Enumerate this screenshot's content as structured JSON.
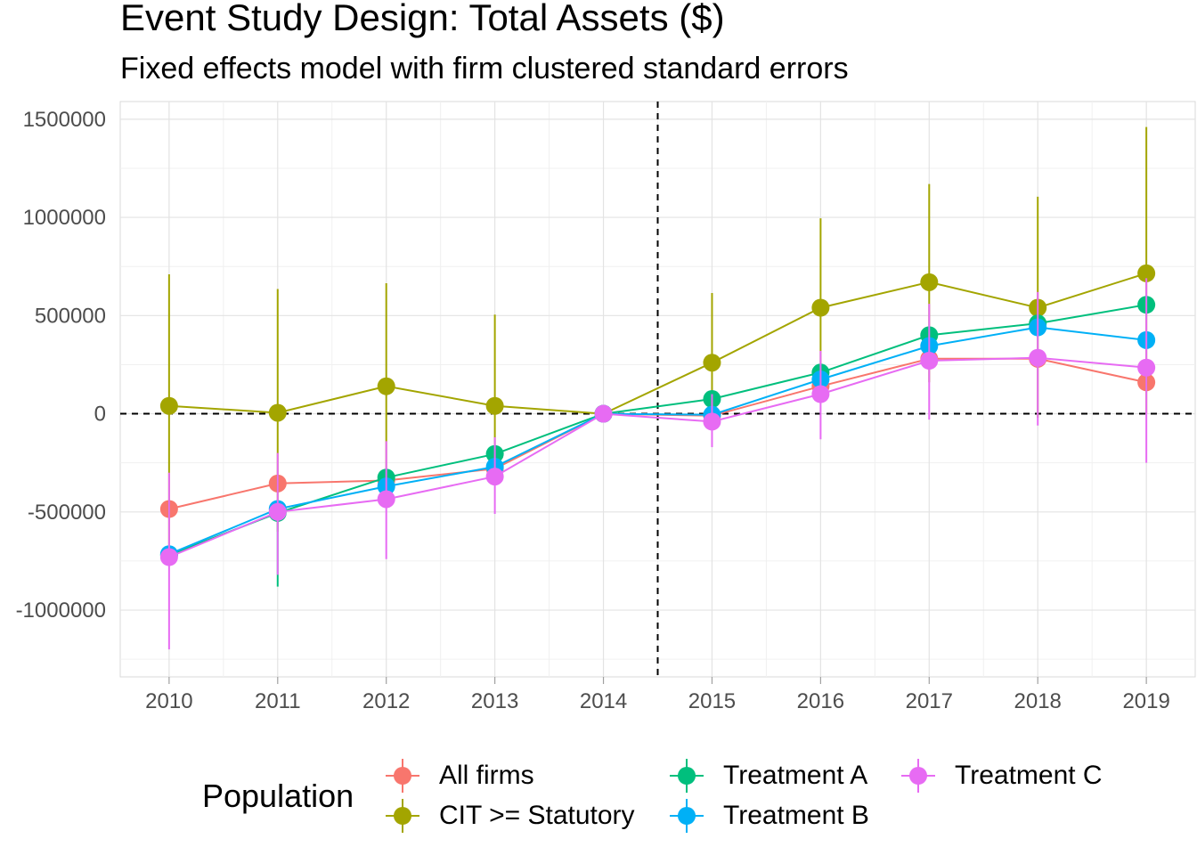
{
  "chart_data": {
    "type": "line",
    "title": "Event Study Design: Total Assets ($)",
    "subtitle": "Fixed effects model with firm clustered standard errors",
    "x": [
      "2010",
      "2011",
      "2012",
      "2013",
      "2014",
      "2015",
      "2016",
      "2017",
      "2018",
      "2019"
    ],
    "xlim": [
      2009.55,
      2019.45
    ],
    "ylim": [
      -1340000,
      1590000
    ],
    "yticks": [
      -1000000,
      -500000,
      0,
      500000,
      1000000,
      1500000
    ],
    "ytick_labels": [
      "-1000000",
      "-500000",
      "0",
      "500000",
      "1000000",
      "1500000"
    ],
    "grid": true,
    "reference_lines": {
      "vertical_x": 2014.5,
      "horizontal_y": 0,
      "style": "dashed"
    },
    "legend": {
      "title": "Population",
      "position": "bottom"
    },
    "series": [
      {
        "name": "All firms",
        "color": "#F8766D",
        "values": [
          -485000,
          -355000,
          -340000,
          -280000,
          0,
          -10000,
          140000,
          280000,
          280000,
          160000
        ],
        "lower": [
          null,
          null,
          null,
          null,
          0,
          null,
          null,
          null,
          null,
          null
        ],
        "upper": [
          null,
          null,
          null,
          null,
          0,
          null,
          null,
          null,
          null,
          null
        ]
      },
      {
        "name": "CIT >= Statutory",
        "color": "#A3A500",
        "values": [
          40000,
          5000,
          140000,
          40000,
          0,
          260000,
          540000,
          670000,
          540000,
          715000
        ],
        "lower": [
          -680000,
          -600000,
          -360000,
          -200000,
          0,
          -30000,
          80000,
          160000,
          -20000,
          0
        ],
        "upper": [
          710000,
          635000,
          665000,
          505000,
          0,
          615000,
          995000,
          1170000,
          1105000,
          1460000
        ]
      },
      {
        "name": "Treatment A",
        "color": "#00BF7D",
        "values": [
          -720000,
          -505000,
          -325000,
          -205000,
          0,
          75000,
          210000,
          400000,
          460000,
          555000
        ],
        "lower": [
          null,
          -880000,
          null,
          null,
          0,
          null,
          null,
          null,
          null,
          null
        ],
        "upper": [
          null,
          null,
          null,
          null,
          0,
          null,
          null,
          null,
          null,
          null
        ]
      },
      {
        "name": "Treatment B",
        "color": "#00B0F6",
        "values": [
          -715000,
          -485000,
          -370000,
          -270000,
          0,
          -5000,
          175000,
          345000,
          440000,
          375000
        ],
        "lower": [
          null,
          null,
          null,
          null,
          0,
          null,
          null,
          null,
          null,
          null
        ],
        "upper": [
          null,
          null,
          null,
          null,
          0,
          null,
          null,
          null,
          null,
          null
        ]
      },
      {
        "name": "Treatment C",
        "color": "#E76BF3",
        "values": [
          -730000,
          -500000,
          -435000,
          -320000,
          0,
          -40000,
          100000,
          270000,
          285000,
          235000
        ],
        "lower": [
          -1200000,
          -820000,
          -740000,
          -510000,
          0,
          -170000,
          -130000,
          -30000,
          -60000,
          -250000
        ],
        "upper": [
          -300000,
          -200000,
          -140000,
          -120000,
          0,
          100000,
          320000,
          560000,
          620000,
          690000
        ]
      }
    ]
  }
}
